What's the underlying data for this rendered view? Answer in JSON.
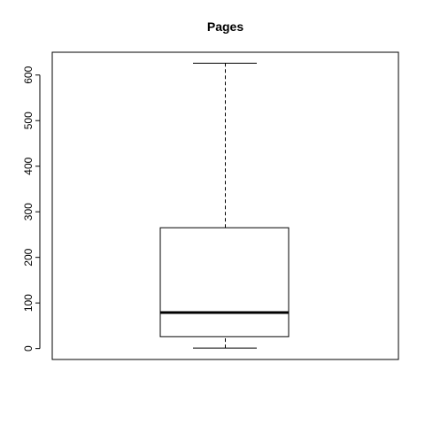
{
  "chart_data": {
    "type": "boxplot",
    "title": "Pages",
    "xlabel": "",
    "ylabel": "",
    "ylim": [
      -24,
      650
    ],
    "yticks": [
      0,
      100,
      200,
      300,
      400,
      500,
      600
    ],
    "grid": false,
    "legend": "none",
    "box": {
      "whisker_low": 1,
      "q1": 26,
      "median": 79,
      "q3": 265,
      "whisker_high": 626
    }
  }
}
